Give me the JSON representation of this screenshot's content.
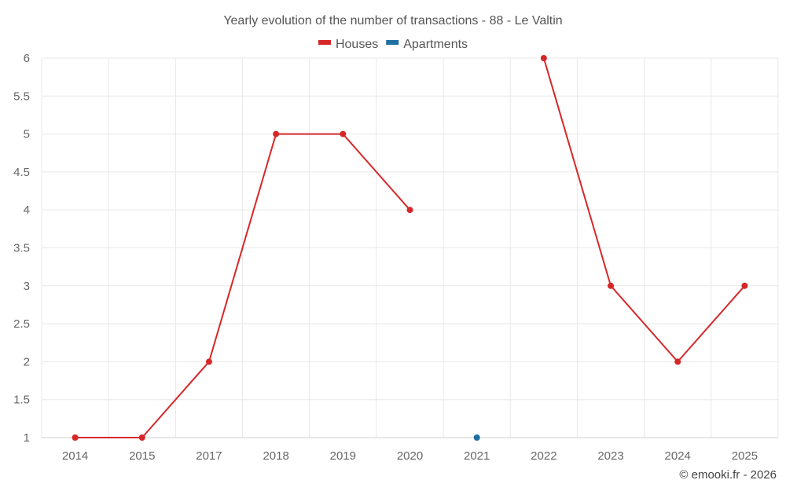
{
  "chart_data": {
    "type": "line",
    "title": "Yearly evolution of the number of transactions - 88 - Le Valtin",
    "categories": [
      "2014",
      "2015",
      "2017",
      "2018",
      "2019",
      "2020",
      "2021",
      "2022",
      "2023",
      "2024",
      "2025"
    ],
    "series": [
      {
        "name": "Houses",
        "color": "#d62728",
        "values": [
          1,
          1,
          2,
          5,
          5,
          4,
          null,
          6,
          3,
          2,
          3
        ]
      },
      {
        "name": "Apartments",
        "color": "#1f6fa3",
        "values": [
          null,
          null,
          null,
          null,
          null,
          null,
          1,
          null,
          null,
          null,
          null
        ]
      }
    ],
    "ylim": [
      1,
      6
    ],
    "yticks": [
      "1",
      "1.5",
      "2",
      "2.5",
      "3",
      "3.5",
      "4",
      "4.5",
      "5",
      "5.5",
      "6"
    ],
    "grid": true,
    "legend_position": "top-center"
  },
  "credit": "© emooki.fr - 2026"
}
